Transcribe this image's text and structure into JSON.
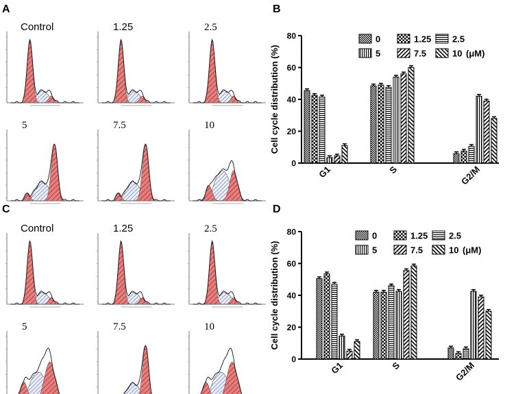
{
  "panels": {
    "a": "A",
    "b": "B",
    "c": "C",
    "d": "D"
  },
  "histograms": [
    {
      "panel": "A",
      "labels": [
        "Control",
        "1.25",
        "2.5",
        "5",
        "7.5",
        "10"
      ],
      "profiles": [
        "g1",
        "g1",
        "g1",
        "g2",
        "g2",
        "mixed"
      ]
    },
    {
      "panel": "C",
      "labels": [
        "Control",
        "1.25",
        "2.5",
        "5",
        "7.5",
        "10"
      ],
      "profiles": [
        "g1",
        "g1",
        "g1",
        "g2wide",
        "g2",
        "g2wide"
      ]
    }
  ],
  "chart_data": [
    {
      "panel": "B",
      "type": "bar",
      "title": "",
      "xlabel": "",
      "ylabel": "Cell cycle distribution (%)",
      "ylim": [
        0,
        80
      ],
      "yticks": [
        "0",
        "20",
        "40",
        "60",
        "80"
      ],
      "categories": [
        "G1",
        "S",
        "G2/M"
      ],
      "legend_position": "top-right",
      "legend_unit": "(μM)",
      "series": [
        {
          "name": "0",
          "pattern": "checker",
          "values": [
            45.5,
            48.5,
            6
          ]
        },
        {
          "name": "1.25",
          "pattern": "bigchecker",
          "values": [
            42.5,
            49,
            7.5
          ]
        },
        {
          "name": "2.5",
          "pattern": "hlines",
          "values": [
            41.5,
            47.5,
            10.5
          ]
        },
        {
          "name": "5",
          "pattern": "vlines",
          "values": [
            3.5,
            54,
            42
          ]
        },
        {
          "name": "7.5",
          "pattern": "diag",
          "values": [
            4.5,
            56,
            39
          ]
        },
        {
          "name": "10",
          "pattern": "diag2",
          "values": [
            11,
            60,
            28
          ]
        }
      ]
    },
    {
      "panel": "D",
      "type": "bar",
      "title": "",
      "xlabel": "",
      "ylabel": "Cell cycle distribution (%)",
      "ylim": [
        0,
        80
      ],
      "yticks": [
        "0",
        "20",
        "40",
        "60",
        "80"
      ],
      "categories": [
        "G1",
        "S",
        "G2/M"
      ],
      "legend_position": "top-right",
      "legend_unit": "(μM)",
      "series": [
        {
          "name": "0",
          "pattern": "checker",
          "values": [
            50.5,
            42,
            7
          ]
        },
        {
          "name": "1.25",
          "pattern": "bigchecker",
          "values": [
            53.5,
            42,
            3.5
          ]
        },
        {
          "name": "2.5",
          "pattern": "hlines",
          "values": [
            47,
            46,
            6.5
          ]
        },
        {
          "name": "5",
          "pattern": "vlines",
          "values": [
            14.5,
            42.5,
            42.5
          ]
        },
        {
          "name": "7.5",
          "pattern": "diag",
          "values": [
            5,
            55.5,
            39
          ]
        },
        {
          "name": "10",
          "pattern": "diag2",
          "values": [
            11,
            58.5,
            30
          ]
        }
      ]
    }
  ]
}
